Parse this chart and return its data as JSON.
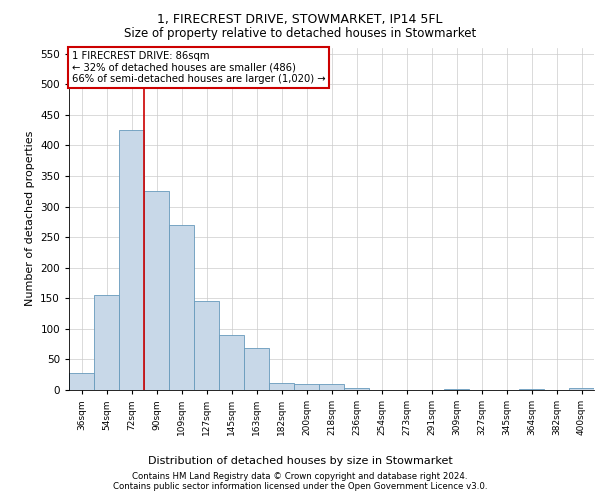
{
  "title1": "1, FIRECREST DRIVE, STOWMARKET, IP14 5FL",
  "title2": "Size of property relative to detached houses in Stowmarket",
  "xlabel": "Distribution of detached houses by size in Stowmarket",
  "ylabel": "Number of detached properties",
  "footer1": "Contains HM Land Registry data © Crown copyright and database right 2024.",
  "footer2": "Contains public sector information licensed under the Open Government Licence v3.0.",
  "annotation_line1": "1 FIRECREST DRIVE: 86sqm",
  "annotation_line2": "← 32% of detached houses are smaller (486)",
  "annotation_line3": "66% of semi-detached houses are larger (1,020) →",
  "bin_labels": [
    "36sqm",
    "54sqm",
    "72sqm",
    "90sqm",
    "109sqm",
    "127sqm",
    "145sqm",
    "163sqm",
    "182sqm",
    "200sqm",
    "218sqm",
    "236sqm",
    "254sqm",
    "273sqm",
    "291sqm",
    "309sqm",
    "327sqm",
    "345sqm",
    "364sqm",
    "382sqm",
    "400sqm"
  ],
  "bar_values": [
    27,
    155,
    425,
    325,
    270,
    145,
    90,
    68,
    12,
    9,
    9,
    4,
    0,
    0,
    0,
    2,
    0,
    0,
    2,
    0,
    3
  ],
  "bar_color": "#c8d8e8",
  "bar_edge_color": "#6699bb",
  "red_line_x": 2.5,
  "ylim": [
    0,
    560
  ],
  "yticks": [
    0,
    50,
    100,
    150,
    200,
    250,
    300,
    350,
    400,
    450,
    500,
    550
  ],
  "background_color": "#ffffff",
  "grid_color": "#cccccc",
  "annotation_box_color": "#ffffff",
  "annotation_box_edge": "#cc0000",
  "red_line_color": "#cc0000"
}
